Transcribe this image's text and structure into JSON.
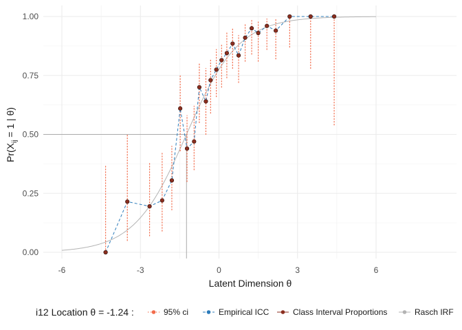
{
  "chart_data": {
    "type": "line",
    "xlabel": "Latent Dimension θ",
    "ylabel_main": "Pr(X",
    "ylabel_sub": "ij",
    "ylabel_rest": " = 1 | θ)",
    "xlim": [
      -6,
      6
    ],
    "ylim": [
      0,
      1
    ],
    "x_ticks": [
      -6,
      -3,
      0,
      3,
      6
    ],
    "x_tick_labels": [
      "-6",
      "-3",
      "0",
      "3",
      "6"
    ],
    "y_ticks": [
      0,
      0.25,
      0.5,
      0.75,
      1
    ],
    "y_tick_labels": [
      "0.00",
      "0.25",
      "0.50",
      "0.75",
      "1.00"
    ],
    "grid": true,
    "legend_position": "bottom",
    "legend_title": "i12 Location  θ = -1.24 :",
    "item_location": -1.24,
    "colors": {
      "ci": "#f26b4a",
      "empirical": "#2b7bba",
      "points": "#8b2e1f",
      "rasch": "#b3b3b3"
    },
    "series": [
      {
        "name": "95% ci",
        "key": "ci"
      },
      {
        "name": "Empirical ICC",
        "key": "empirical"
      },
      {
        "name": "Class Interval Proportions",
        "key": "points"
      },
      {
        "name": "Rasch IRF",
        "key": "rasch"
      }
    ],
    "class_intervals": [
      {
        "x": -4.33,
        "y": 0.0,
        "lo": 0.0,
        "hi": 0.37
      },
      {
        "x": -3.5,
        "y": 0.215,
        "lo": 0.05,
        "hi": 0.5
      },
      {
        "x": -2.65,
        "y": 0.195,
        "lo": 0.07,
        "hi": 0.38
      },
      {
        "x": -2.17,
        "y": 0.22,
        "lo": 0.09,
        "hi": 0.42
      },
      {
        "x": -1.8,
        "y": 0.305,
        "lo": 0.18,
        "hi": 0.45
      },
      {
        "x": -1.48,
        "y": 0.61,
        "lo": 0.43,
        "hi": 0.75
      },
      {
        "x": -1.22,
        "y": 0.44,
        "lo": 0.3,
        "hi": 0.58
      },
      {
        "x": -0.95,
        "y": 0.47,
        "lo": 0.35,
        "hi": 0.62
      },
      {
        "x": -0.75,
        "y": 0.7,
        "lo": 0.55,
        "hi": 0.8
      },
      {
        "x": -0.5,
        "y": 0.64,
        "lo": 0.5,
        "hi": 0.78
      },
      {
        "x": -0.32,
        "y": 0.73,
        "lo": 0.59,
        "hi": 0.82
      },
      {
        "x": -0.1,
        "y": 0.775,
        "lo": 0.66,
        "hi": 0.86
      },
      {
        "x": 0.1,
        "y": 0.815,
        "lo": 0.7,
        "hi": 0.88
      },
      {
        "x": 0.3,
        "y": 0.845,
        "lo": 0.74,
        "hi": 0.93
      },
      {
        "x": 0.52,
        "y": 0.885,
        "lo": 0.78,
        "hi": 0.95
      },
      {
        "x": 0.75,
        "y": 0.835,
        "lo": 0.72,
        "hi": 0.92
      },
      {
        "x": 1.0,
        "y": 0.91,
        "lo": 0.81,
        "hi": 0.97
      },
      {
        "x": 1.25,
        "y": 0.95,
        "lo": 0.84,
        "hi": 0.99
      },
      {
        "x": 1.5,
        "y": 0.93,
        "lo": 0.81,
        "hi": 0.98
      },
      {
        "x": 1.83,
        "y": 0.96,
        "lo": 0.86,
        "hi": 0.99
      },
      {
        "x": 2.17,
        "y": 0.94,
        "lo": 0.82,
        "hi": 0.99
      },
      {
        "x": 2.7,
        "y": 1.0,
        "lo": 0.87,
        "hi": 1.0
      },
      {
        "x": 3.5,
        "y": 1.0,
        "lo": 0.78,
        "hi": 1.0
      },
      {
        "x": 4.4,
        "y": 1.0,
        "lo": 0.54,
        "hi": 1.0
      }
    ]
  }
}
